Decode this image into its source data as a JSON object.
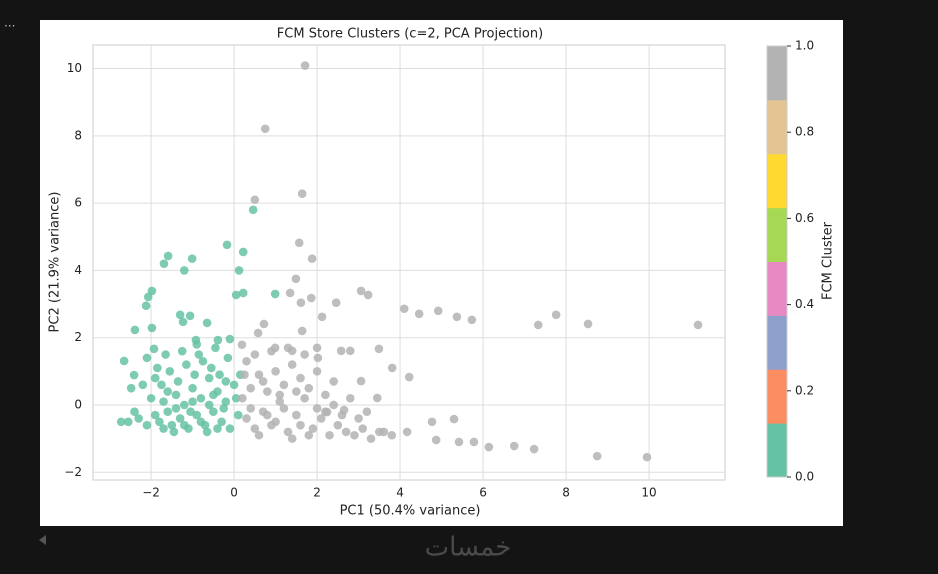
{
  "page": {
    "menu": "...",
    "watermark": "خمسات"
  },
  "chart_data": {
    "type": "scatter",
    "title": "FCM Store Clusters (c=2, PCA Projection)",
    "x_label": "PC1 (50.4% variance)",
    "y_label": "PC2 (21.9% variance)",
    "xlim": [
      -3.4,
      11.83
    ],
    "ylim": [
      -2.23,
      10.7
    ],
    "xticks": [
      {
        "value": -2,
        "label": "−2"
      },
      0,
      2,
      4,
      6,
      8,
      10
    ],
    "yticks": [
      {
        "value": -2,
        "label": "−2"
      },
      0,
      2,
      4,
      6,
      8,
      10
    ],
    "grid": true,
    "series": [
      {
        "color": "#66c2a5",
        "x": [
          0.46,
          -0.17,
          0.22,
          -1.59,
          -1.01,
          -1.2,
          -1.69,
          0.12,
          0.22,
          0.05,
          0.99,
          -2.07,
          -1.98,
          -2.12,
          -1.3,
          -1.06,
          -1.23,
          -2.39,
          -1.98,
          -0.65,
          -0.39,
          -0.92,
          -1.93,
          -2.65,
          -0.1,
          -2.41,
          -2.48,
          -2.72,
          -2.3,
          -2.1,
          -1.9,
          -1.8,
          -1.7,
          -1.6,
          -1.5,
          -1.4,
          -1.3,
          -1.2,
          -1.1,
          -1.0,
          -0.9,
          -0.8,
          -0.7,
          -0.6,
          -0.5,
          -0.4,
          -0.3,
          -0.2,
          -0.1,
          0.0,
          0.1,
          -2.0,
          -1.75,
          -1.55,
          -1.35,
          -1.15,
          -0.95,
          -0.75,
          -0.55,
          -0.35,
          -0.15,
          -1.85,
          -1.65,
          -1.25,
          -0.85,
          -0.45,
          -2.2,
          -2.4,
          -2.55,
          -1.45,
          -0.65,
          -1.05,
          -0.25,
          0.05,
          -1.6,
          -1.2,
          -0.8,
          -0.4,
          -1.9,
          -2.1,
          -0.5,
          -1.0,
          -0.2,
          0.15,
          -1.4,
          -0.6,
          -1.7,
          -0.9
        ],
        "y": [
          5.8,
          4.76,
          4.55,
          4.43,
          4.35,
          4.0,
          4.2,
          4.0,
          3.33,
          3.27,
          3.3,
          3.21,
          3.39,
          2.95,
          2.68,
          2.65,
          2.47,
          2.23,
          2.29,
          2.44,
          1.93,
          1.93,
          1.67,
          1.31,
          1.96,
          0.89,
          0.5,
          -0.5,
          -0.4,
          -0.6,
          -0.3,
          -0.5,
          0.1,
          -0.2,
          -0.6,
          0.3,
          -0.4,
          0.0,
          -0.7,
          0.5,
          -0.3,
          0.2,
          -0.6,
          0.8,
          -0.2,
          0.4,
          -0.5,
          0.1,
          -0.7,
          0.6,
          -0.3,
          0.2,
          0.6,
          1.0,
          0.7,
          1.2,
          0.9,
          1.3,
          1.1,
          0.9,
          1.4,
          1.1,
          1.5,
          1.6,
          1.5,
          1.7,
          0.6,
          -0.2,
          -0.5,
          -0.8,
          -0.8,
          -0.2,
          -0.1,
          0.2,
          0.4,
          -0.6,
          -0.5,
          -0.7,
          0.8,
          1.4,
          0.3,
          0.1,
          0.7,
          0.9,
          -0.1,
          0.0,
          -0.7,
          1.8
        ]
      },
      {
        "color": "#b3b3b3",
        "x": [
          1.71,
          0.75,
          0.5,
          1.64,
          1.57,
          1.88,
          1.49,
          1.35,
          1.86,
          1.61,
          2.46,
          3.06,
          3.23,
          2.12,
          4.1,
          4.46,
          4.92,
          5.37,
          5.73,
          7.33,
          7.76,
          8.53,
          11.18,
          1.64,
          0.72,
          0.58,
          0.19,
          0.99,
          1.4,
          2.02,
          2.58,
          2.8,
          3.49,
          3.81,
          4.22,
          3.06,
          3.45,
          4.77,
          5.3,
          4.17,
          4.87,
          5.42,
          5.78,
          6.14,
          6.75,
          7.23,
          8.75,
          9.95,
          3.61,
          2.65,
          2.24,
          0.3,
          0.5,
          0.7,
          0.9,
          1.1,
          1.3,
          1.5,
          1.7,
          1.9,
          2.1,
          2.3,
          2.5,
          2.7,
          2.9,
          3.1,
          3.3,
          3.5,
          3.8,
          0.4,
          0.6,
          0.8,
          1.0,
          1.2,
          1.4,
          1.6,
          1.8,
          2.0,
          2.2,
          2.4,
          0.3,
          0.5,
          0.9,
          1.3,
          1.7,
          2.0,
          0.2,
          0.6,
          1.0,
          1.4,
          1.8,
          2.2,
          2.6,
          3.0,
          0.4,
          0.8,
          1.2,
          1.6,
          2.0,
          2.4,
          2.8,
          3.2,
          1.1,
          0.7,
          1.5,
          0.25
        ],
        "y": [
          10.09,
          8.21,
          6.1,
          6.28,
          4.82,
          4.35,
          3.75,
          3.33,
          3.18,
          3.04,
          3.04,
          3.39,
          3.27,
          2.62,
          2.86,
          2.71,
          2.8,
          2.62,
          2.53,
          2.38,
          2.68,
          2.41,
          2.38,
          2.2,
          2.41,
          2.14,
          1.79,
          1.7,
          1.61,
          1.4,
          1.61,
          1.61,
          1.67,
          1.1,
          0.83,
          0.71,
          0.21,
          -0.5,
          -0.42,
          -0.8,
          -1.04,
          -1.1,
          -1.1,
          -1.25,
          -1.22,
          -1.31,
          -1.52,
          -1.55,
          -0.8,
          -0.15,
          -0.21,
          -0.4,
          -0.7,
          -0.2,
          -0.6,
          0.1,
          -0.8,
          -0.3,
          0.2,
          -0.7,
          -0.4,
          -0.9,
          -0.6,
          -0.8,
          -0.9,
          -0.7,
          -1.0,
          -0.8,
          -0.9,
          0.5,
          0.9,
          0.4,
          1.0,
          0.6,
          1.2,
          0.8,
          0.5,
          1.0,
          0.3,
          0.7,
          1.3,
          1.5,
          1.6,
          1.7,
          1.5,
          1.7,
          0.2,
          -0.9,
          -0.5,
          -1.0,
          -0.9,
          -0.2,
          -0.3,
          -0.4,
          -0.1,
          -0.3,
          -0.1,
          -0.6,
          -0.1,
          0.0,
          0.2,
          -0.2,
          0.3,
          0.7,
          0.4,
          0.9
        ]
      }
    ],
    "colorbar": {
      "label": "FCM Cluster",
      "lim": [
        0,
        1
      ],
      "colors": [
        "#66c2a5",
        "#fc8d62",
        "#8da0cb",
        "#e78ac3",
        "#a6d854",
        "#ffd92f",
        "#e5c494",
        "#b3b3b3"
      ],
      "ticks": [
        {
          "value": 0,
          "label": "0.0"
        },
        {
          "value": 0.2,
          "label": "0.2"
        },
        {
          "value": 0.4,
          "label": "0.4"
        },
        {
          "value": 0.6,
          "label": "0.6"
        },
        {
          "value": 0.8,
          "label": "0.8"
        },
        {
          "value": 1,
          "label": "1.0"
        }
      ]
    }
  }
}
